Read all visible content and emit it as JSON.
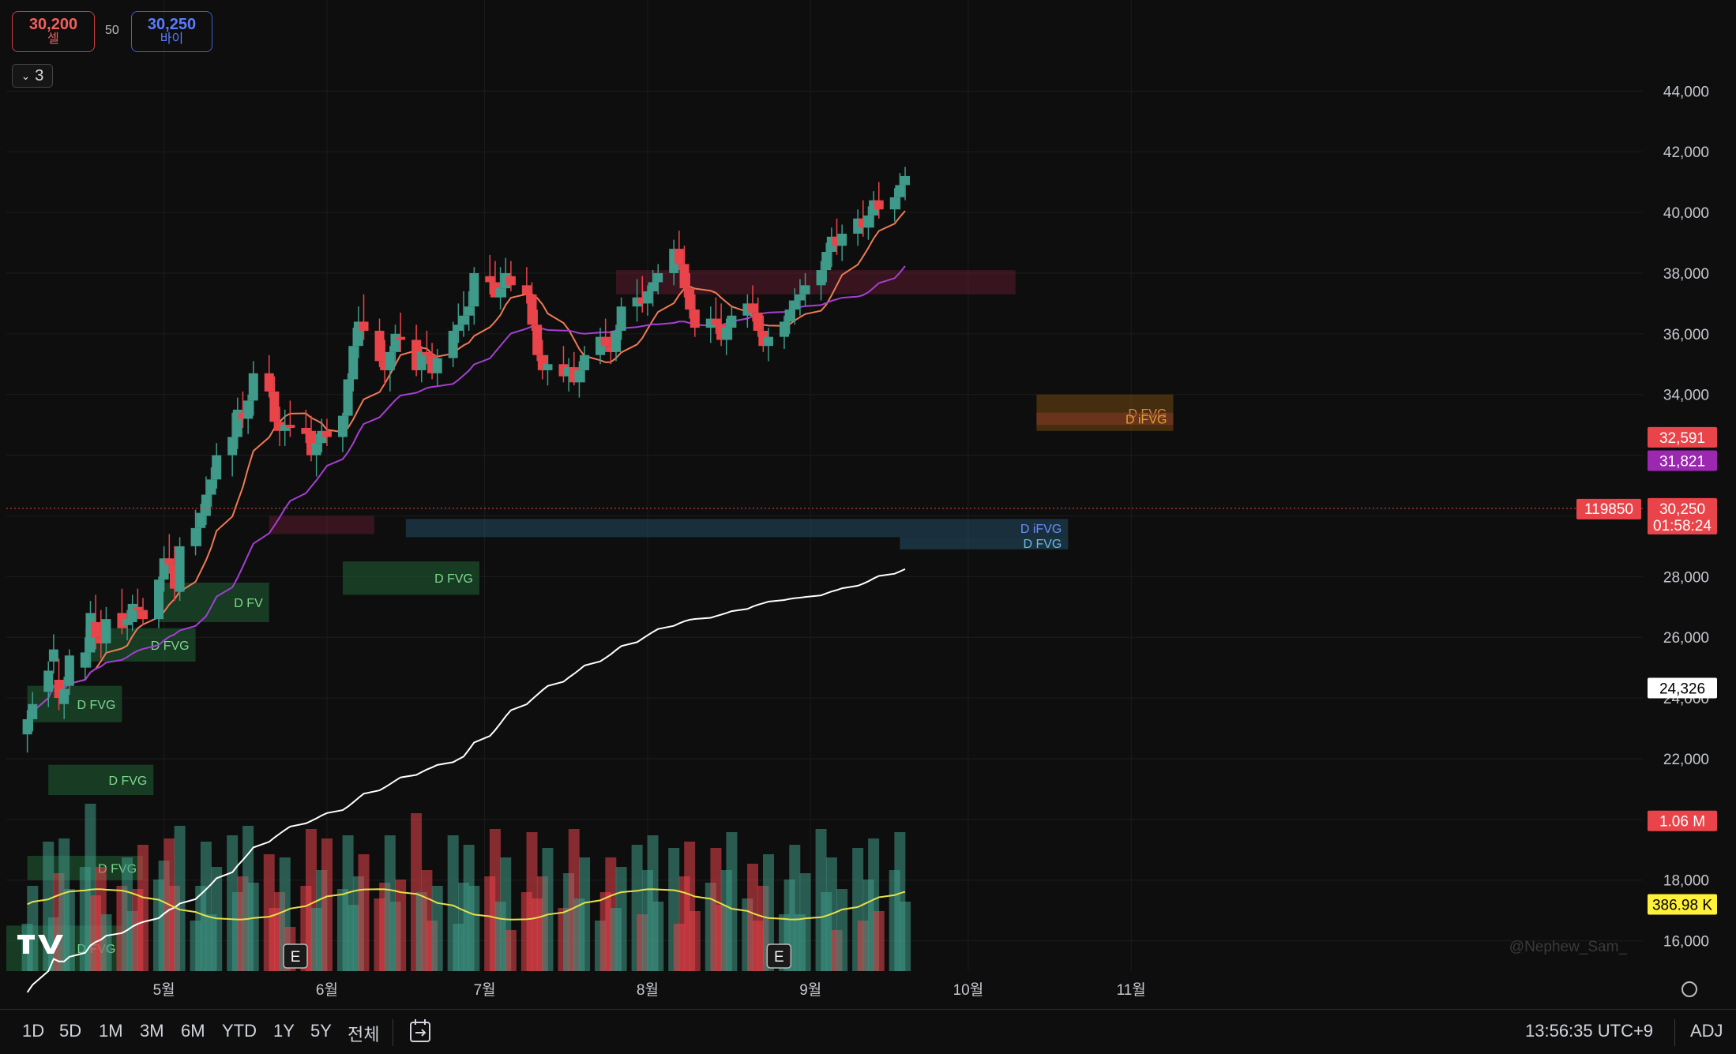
{
  "order_panel": {
    "sell": {
      "price": "30,200",
      "label": "셀"
    },
    "spread": "50",
    "buy": {
      "price": "30,250",
      "label": "바이"
    }
  },
  "legend_toggle": {
    "count": "3",
    "icon": "chevron-down-icon"
  },
  "watermark": "@Nephew_Sam_",
  "time_ranges": [
    "1D",
    "5D",
    "1M",
    "3M",
    "6M",
    "YTD",
    "1Y",
    "5Y",
    "전체"
  ],
  "clock": "13:56:35 UTC+9",
  "adj_label": "ADJ",
  "colors": {
    "up": "#3f9a89",
    "down": "#e9444a",
    "ema_fast": "#f07a55",
    "ema_mid": "#a63fd4",
    "ema_slow": "#ffffff",
    "volume_ma": "#e6df4a"
  },
  "chart_data": {
    "type": "candlestick",
    "y_axis": {
      "range": [
        15000,
        47000
      ],
      "ticks": [
        16000,
        18000,
        20000,
        22000,
        24000,
        26000,
        28000,
        30000,
        32000,
        34000,
        36000,
        38000,
        40000,
        42000,
        44000
      ],
      "tick_labels": [
        "16,000",
        "18,000",
        "20,000",
        "22,000",
        "24,000",
        "26,000",
        "28,000",
        "",
        "",
        "34,000",
        "36,000",
        "38,000",
        "40,000",
        "42,000",
        "44,000"
      ],
      "side": "right"
    },
    "x_axis": {
      "range_days": [
        0,
        222
      ],
      "months": [
        {
          "label": "5월",
          "day": 30
        },
        {
          "label": "6월",
          "day": 61
        },
        {
          "label": "7월",
          "day": 91
        },
        {
          "label": "8월",
          "day": 122
        },
        {
          "label": "9월",
          "day": 153
        },
        {
          "label": "10월",
          "day": 183
        },
        {
          "label": "11월",
          "day": 214
        }
      ]
    },
    "candles": [
      [
        4,
        22800,
        23600,
        22200,
        23300
      ],
      [
        5,
        23300,
        24200,
        22900,
        23800
      ],
      [
        8,
        24200,
        25200,
        23700,
        24900
      ],
      [
        9,
        25200,
        26100,
        24800,
        25600
      ],
      [
        10,
        24600,
        25300,
        23600,
        24000
      ],
      [
        11,
        23800,
        24700,
        23300,
        24300
      ],
      [
        12,
        24400,
        25600,
        24100,
        25400
      ],
      [
        15,
        25000,
        26000,
        24600,
        25500
      ],
      [
        16,
        25500,
        27200,
        25000,
        26800
      ],
      [
        17,
        26500,
        27400,
        25600,
        26000
      ],
      [
        18,
        26000,
        26900,
        25300,
        25800
      ],
      [
        19,
        25800,
        27000,
        25500,
        26600
      ],
      [
        22,
        26800,
        27600,
        26100,
        26300
      ],
      [
        23,
        26400,
        26900,
        25900,
        26600
      ],
      [
        24,
        26500,
        27400,
        26200,
        27100
      ],
      [
        25,
        27000,
        27600,
        26600,
        26900
      ],
      [
        26,
        26900,
        27300,
        26400,
        26600
      ],
      [
        29,
        26600,
        28000,
        26300,
        27900
      ],
      [
        30,
        27900,
        29000,
        27500,
        28600
      ],
      [
        31,
        28600,
        29400,
        28100,
        28400
      ],
      [
        32,
        28400,
        29000,
        27200,
        27600
      ],
      [
        33,
        27500,
        29300,
        27200,
        29000
      ],
      [
        36,
        29000,
        30200,
        28700,
        29600
      ],
      [
        37,
        29600,
        30400,
        29000,
        30100
      ],
      [
        38,
        30000,
        31300,
        29700,
        30700
      ],
      [
        39,
        30700,
        31600,
        30300,
        31200
      ],
      [
        40,
        31200,
        32400,
        30900,
        32000
      ],
      [
        43,
        32000,
        33400,
        31300,
        32600
      ],
      [
        44,
        32600,
        33900,
        32200,
        33500
      ],
      [
        45,
        33400,
        34100,
        32900,
        33200
      ],
      [
        46,
        33200,
        34000,
        32700,
        33800
      ],
      [
        47,
        33800,
        35100,
        33300,
        34700
      ],
      [
        50,
        34700,
        35300,
        33900,
        34100
      ],
      [
        51,
        34100,
        34600,
        32800,
        33100
      ],
      [
        52,
        33100,
        33600,
        32300,
        32800
      ],
      [
        53,
        32800,
        33500,
        32300,
        33000
      ],
      [
        54,
        33000,
        33800,
        32600,
        32900
      ],
      [
        57,
        32900,
        33500,
        32400,
        32700
      ],
      [
        58,
        32800,
        33300,
        31800,
        32000
      ],
      [
        59,
        32000,
        32700,
        31300,
        32400
      ],
      [
        60,
        32400,
        33200,
        32100,
        32800
      ],
      [
        61,
        32800,
        33200,
        32300,
        32600
      ],
      [
        64,
        32600,
        33400,
        32100,
        33300
      ],
      [
        65,
        33300,
        34700,
        32900,
        34500
      ],
      [
        66,
        34500,
        36200,
        34100,
        35600
      ],
      [
        67,
        35600,
        36900,
        35200,
        36400
      ],
      [
        68,
        36400,
        37300,
        35800,
        36100
      ],
      [
        71,
        36100,
        36500,
        34900,
        35100
      ],
      [
        72,
        35100,
        35800,
        34300,
        34800
      ],
      [
        73,
        34800,
        35600,
        34100,
        35400
      ],
      [
        74,
        35400,
        36300,
        35000,
        36000
      ],
      [
        75,
        35900,
        36700,
        35400,
        35800
      ],
      [
        78,
        35800,
        36300,
        34600,
        34800
      ],
      [
        79,
        34800,
        35600,
        34400,
        35400
      ],
      [
        80,
        35400,
        36100,
        35000,
        35300
      ],
      [
        81,
        35300,
        35700,
        34500,
        34700
      ],
      [
        82,
        34700,
        35500,
        34300,
        35200
      ],
      [
        85,
        35200,
        36400,
        34900,
        36100
      ],
      [
        86,
        36100,
        37000,
        35700,
        36300
      ],
      [
        87,
        36300,
        37400,
        35900,
        36600
      ],
      [
        88,
        36600,
        37400,
        36100,
        36900
      ],
      [
        89,
        36900,
        38200,
        36300,
        38000
      ],
      [
        92,
        37900,
        38600,
        37300,
        37700
      ],
      [
        93,
        37700,
        38400,
        37200,
        37200
      ],
      [
        94,
        37200,
        38200,
        36800,
        37500
      ],
      [
        95,
        37500,
        38500,
        37200,
        38000
      ],
      [
        96,
        37900,
        38400,
        37400,
        37600
      ],
      [
        99,
        37600,
        38200,
        37000,
        37300
      ],
      [
        100,
        37300,
        37700,
        36100,
        36300
      ],
      [
        101,
        36300,
        36800,
        35100,
        35300
      ],
      [
        102,
        35300,
        35800,
        34500,
        34800
      ],
      [
        103,
        34800,
        35300,
        34300,
        35000
      ],
      [
        106,
        35000,
        35600,
        34400,
        34600
      ],
      [
        107,
        34600,
        35200,
        34100,
        34900
      ],
      [
        108,
        34900,
        35400,
        34300,
        34400
      ],
      [
        109,
        34400,
        35100,
        33900,
        34800
      ],
      [
        110,
        34800,
        35600,
        34400,
        35300
      ],
      [
        113,
        35300,
        36200,
        35000,
        35900
      ],
      [
        114,
        35900,
        36500,
        35400,
        35600
      ],
      [
        115,
        35600,
        36100,
        35000,
        35400
      ],
      [
        116,
        35400,
        36300,
        35100,
        36100
      ],
      [
        117,
        36100,
        37200,
        35800,
        36900
      ],
      [
        120,
        36900,
        37800,
        36400,
        37200
      ],
      [
        121,
        37200,
        37900,
        36700,
        37000
      ],
      [
        122,
        37000,
        37600,
        36600,
        37400
      ],
      [
        123,
        37400,
        38100,
        36900,
        37700
      ],
      [
        124,
        37700,
        38300,
        37300,
        38000
      ],
      [
        127,
        38000,
        39100,
        37600,
        38800
      ],
      [
        128,
        38800,
        39400,
        38100,
        38300
      ],
      [
        129,
        38300,
        38900,
        37200,
        37500
      ],
      [
        130,
        37500,
        38000,
        36500,
        36800
      ],
      [
        131,
        36800,
        37300,
        35900,
        36200
      ],
      [
        134,
        36200,
        36900,
        35700,
        36500
      ],
      [
        135,
        36500,
        37200,
        36000,
        36300
      ],
      [
        136,
        36300,
        37000,
        35600,
        35800
      ],
      [
        137,
        35800,
        36500,
        35300,
        36200
      ],
      [
        138,
        36200,
        36900,
        35800,
        36600
      ],
      [
        141,
        36600,
        37300,
        36200,
        37000
      ],
      [
        142,
        37000,
        37600,
        36400,
        36700
      ],
      [
        143,
        36700,
        37200,
        35900,
        36100
      ],
      [
        144,
        36100,
        36600,
        35400,
        35600
      ],
      [
        145,
        35600,
        36200,
        35100,
        35900
      ],
      [
        148,
        35900,
        36600,
        35500,
        36400
      ],
      [
        149,
        36400,
        37100,
        36000,
        36800
      ],
      [
        150,
        36800,
        37500,
        36300,
        37100
      ],
      [
        151,
        37100,
        37800,
        36600,
        37300
      ],
      [
        152,
        37300,
        38000,
        36900,
        37600
      ],
      [
        155,
        37600,
        38400,
        37100,
        38100
      ],
      [
        156,
        38100,
        39000,
        37700,
        38700
      ],
      [
        157,
        38700,
        39500,
        38200,
        39200
      ],
      [
        158,
        39200,
        39800,
        38600,
        38900
      ],
      [
        159,
        38900,
        39600,
        38400,
        39300
      ],
      [
        162,
        39300,
        40100,
        38900,
        39800
      ],
      [
        163,
        39800,
        40400,
        39200,
        39500
      ],
      [
        164,
        39500,
        40200,
        39100,
        39900
      ],
      [
        165,
        39900,
        40700,
        39500,
        40400
      ],
      [
        166,
        40400,
        41000,
        39800,
        40100
      ],
      [
        169,
        40100,
        40800,
        39700,
        40500
      ],
      [
        170,
        40500,
        41300,
        40100,
        40900
      ],
      [
        171,
        40900,
        41500,
        40400,
        41200
      ]
    ],
    "volume": {
      "note": "volume bars at bottom, scaled relative",
      "ma_color": "#e6df4a"
    },
    "zones": [
      {
        "label": "D FVG",
        "type": "bullish",
        "from_day": 4,
        "to_day": 22,
        "low": 23200,
        "high": 24400
      },
      {
        "label": "D FVG",
        "type": "bullish",
        "from_day": 15,
        "to_day": 36,
        "low": 25200,
        "high": 26300
      },
      {
        "label": "D FV",
        "type": "bullish",
        "from_day": 29,
        "to_day": 50,
        "low": 26500,
        "high": 27800
      },
      {
        "label": "D FVG",
        "type": "bullish",
        "from_day": 64,
        "to_day": 90,
        "low": 27400,
        "high": 28500
      },
      {
        "label": "D FVG",
        "type": "bullish",
        "from_day": 8,
        "to_day": 28,
        "low": 20800,
        "high": 21800
      },
      {
        "label": "D FVG",
        "type": "bullish",
        "from_day": 4,
        "to_day": 26,
        "low": 18000,
        "high": 18800
      },
      {
        "label": "D FVG",
        "type": "bullish",
        "from_day": 0,
        "to_day": 22,
        "low": 15000,
        "high": 16500
      },
      {
        "label": "",
        "type": "bearish",
        "from_day": 50,
        "to_day": 70,
        "low": 29400,
        "high": 30000
      },
      {
        "label": "",
        "type": "bearish",
        "from_day": 116,
        "to_day": 192,
        "low": 37300,
        "high": 38100
      },
      {
        "label": "D iFVG",
        "type": "inverse",
        "from_day": 76,
        "to_day": 202,
        "low": 29300,
        "high": 29900
      },
      {
        "label": "D FVG",
        "type": "bullish_blue",
        "from_day": 170,
        "to_day": 202,
        "low": 28900,
        "high": 29300
      },
      {
        "label": "D FVG",
        "type": "bearish_orange",
        "from_day": 196,
        "to_day": 222,
        "low": 32800,
        "high": 34000
      },
      {
        "label": "D iFVG",
        "type": "inverse_orange",
        "from_day": 196,
        "to_day": 222,
        "low": 33000,
        "high": 33400
      }
    ],
    "price_tags": [
      {
        "value": "32,591",
        "kind": "ema-fast"
      },
      {
        "value": "31,821",
        "kind": "ema-mid"
      },
      {
        "value": "30,250",
        "kind": "last",
        "countdown": "01:58:24"
      },
      {
        "value": "24,326",
        "kind": "ema-slow"
      },
      {
        "value": "1.06 M",
        "kind": "volume"
      },
      {
        "value": "386.98 K",
        "kind": "volume-ma"
      }
    ],
    "last_price_line": {
      "value": 30250,
      "left_label": "119850"
    },
    "earnings_markers": [
      {
        "label": "E",
        "day": 55
      },
      {
        "label": "E",
        "day": 147
      }
    ]
  }
}
